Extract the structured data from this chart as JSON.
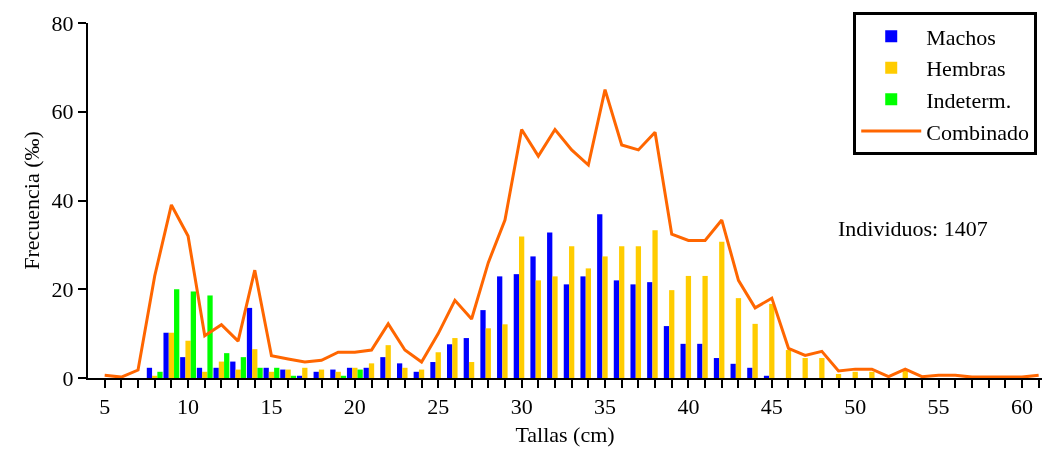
{
  "chart_data": {
    "type": "bar",
    "xlabel": "Tallas (cm)",
    "ylabel": "Frecuencia (‰)",
    "x": [
      5,
      6,
      7,
      8,
      9,
      10,
      11,
      12,
      13,
      14,
      15,
      16,
      17,
      18,
      19,
      20,
      21,
      22,
      23,
      24,
      25,
      26,
      27,
      28,
      29,
      30,
      31,
      32,
      33,
      34,
      35,
      36,
      37,
      38,
      39,
      40,
      41,
      42,
      43,
      44,
      45,
      46,
      47,
      48,
      49,
      50,
      51,
      52,
      53,
      54,
      55,
      56,
      57,
      58,
      59,
      60,
      61
    ],
    "series": [
      {
        "name": "Machos",
        "color": "#0000ff",
        "values": [
          null,
          null,
          null,
          2.3,
          10.2,
          4.7,
          2.3,
          2.3,
          3.7,
          15.8,
          2.3,
          1.9,
          0.5,
          1.4,
          1.9,
          2.3,
          2.3,
          4.7,
          3.3,
          1.4,
          3.6,
          7.6,
          9.0,
          15.3,
          22.9,
          23.4,
          27.4,
          32.8,
          21.1,
          22.9,
          36.9,
          22.0,
          21.1,
          21.6,
          11.7,
          7.7,
          7.7,
          4.5,
          3.2,
          2.3,
          0.5,
          null,
          null,
          null,
          null,
          null,
          null,
          null,
          null,
          null,
          null,
          null,
          null,
          null,
          null,
          null,
          null
        ]
      },
      {
        "name": "Hembras",
        "color": "#ffcc00",
        "values": [
          null,
          null,
          null,
          0.5,
          10.2,
          8.4,
          1.4,
          3.7,
          1.9,
          6.5,
          1.4,
          1.9,
          2.3,
          1.9,
          1.4,
          2.3,
          3.3,
          7.4,
          2.3,
          1.9,
          5.8,
          9.0,
          3.6,
          11.2,
          12.1,
          31.9,
          22.0,
          22.9,
          29.7,
          24.7,
          27.4,
          29.7,
          29.7,
          33.3,
          19.8,
          23.0,
          23.0,
          30.7,
          18.0,
          12.2,
          16.7,
          6.3,
          4.5,
          4.5,
          0.9,
          1.4,
          1.4,
          null,
          1.8,
          null,
          null,
          null,
          null,
          null,
          null,
          null,
          null
        ]
      },
      {
        "name": "Indeterm.",
        "color": "#00ff00",
        "values": [
          null,
          null,
          null,
          1.4,
          20,
          19.5,
          18.6,
          5.6,
          4.7,
          2.3,
          2.3,
          0.5,
          null,
          null,
          0.5,
          1.9,
          null,
          null,
          null,
          null,
          null,
          null,
          null,
          null,
          null,
          null,
          null,
          null,
          null,
          null,
          null,
          null,
          null,
          null,
          null,
          null,
          null,
          null,
          null,
          null,
          null,
          null,
          null,
          null,
          null,
          null,
          null,
          null,
          null,
          null,
          null,
          null,
          null,
          null,
          null,
          null,
          null
        ]
      },
      {
        "name": "Combinado",
        "type": "line",
        "color": "#ff6600",
        "values": [
          0.6,
          0.2,
          1.8,
          23,
          39,
          32,
          9.5,
          12,
          8.3,
          24.3,
          5,
          4.3,
          3.6,
          4,
          5.8,
          5.8,
          6.3,
          12.2,
          6.3,
          3.6,
          10,
          17.5,
          13.3,
          26,
          35.6,
          56,
          50,
          56,
          51.4,
          48,
          65,
          52.5,
          51.4,
          55.4,
          32.4,
          31,
          31,
          35.6,
          22,
          15.8,
          18,
          6.7,
          5.1,
          6,
          1.6,
          2,
          2,
          0.3,
          2,
          0.3,
          0.6,
          0.6,
          0.2,
          0.2,
          0.2,
          0.2,
          0.6
        ]
      }
    ],
    "xlim": [
      4,
      61.2
    ],
    "xticks": [
      5,
      {
        "value": 6,
        "label": null
      },
      {
        "value": 7,
        "label": null
      },
      {
        "value": 8,
        "label": null
      },
      {
        "value": 9,
        "label": null
      },
      10,
      {
        "value": 11,
        "label": null
      },
      {
        "value": 12,
        "label": null
      },
      {
        "value": 13,
        "label": null
      },
      {
        "value": 14,
        "label": null
      },
      15,
      {
        "value": 16,
        "label": null
      },
      {
        "value": 17,
        "label": null
      },
      {
        "value": 18,
        "label": null
      },
      {
        "value": 19,
        "label": null
      },
      20,
      {
        "value": 21,
        "label": null
      },
      {
        "value": 22,
        "label": null
      },
      {
        "value": 23,
        "label": null
      },
      {
        "value": 24,
        "label": null
      },
      25,
      {
        "value": 26,
        "label": null
      },
      {
        "value": 27,
        "label": null
      },
      {
        "value": 28,
        "label": null
      },
      {
        "value": 29,
        "label": null
      },
      30,
      {
        "value": 31,
        "label": null
      },
      {
        "value": 32,
        "label": null
      },
      {
        "value": 33,
        "label": null
      },
      {
        "value": 34,
        "label": null
      },
      35,
      {
        "value": 36,
        "label": null
      },
      {
        "value": 37,
        "label": null
      },
      {
        "value": 38,
        "label": null
      },
      {
        "value": 39,
        "label": null
      },
      40,
      {
        "value": 41,
        "label": null
      },
      {
        "value": 42,
        "label": null
      },
      {
        "value": 43,
        "label": null
      },
      {
        "value": 44,
        "label": null
      },
      45,
      {
        "value": 46,
        "label": null
      },
      {
        "value": 47,
        "label": null
      },
      {
        "value": 48,
        "label": null
      },
      {
        "value": 49,
        "label": null
      },
      50,
      {
        "value": 51,
        "label": null
      },
      {
        "value": 52,
        "label": null
      },
      {
        "value": 53,
        "label": null
      },
      {
        "value": 54,
        "label": null
      },
      55,
      {
        "value": 56,
        "label": null
      },
      {
        "value": 57,
        "label": null
      },
      {
        "value": 58,
        "label": null
      },
      {
        "value": 59,
        "label": null
      },
      60,
      {
        "value": 61,
        "label": null
      }
    ],
    "ylim": [
      0,
      80
    ],
    "yticks": [
      0,
      20,
      40,
      60,
      80
    ],
    "grid": false,
    "legend": "top right",
    "marker": "none",
    "line_style": "solid",
    "annotations": [
      "Individuos: 1407"
    ]
  }
}
